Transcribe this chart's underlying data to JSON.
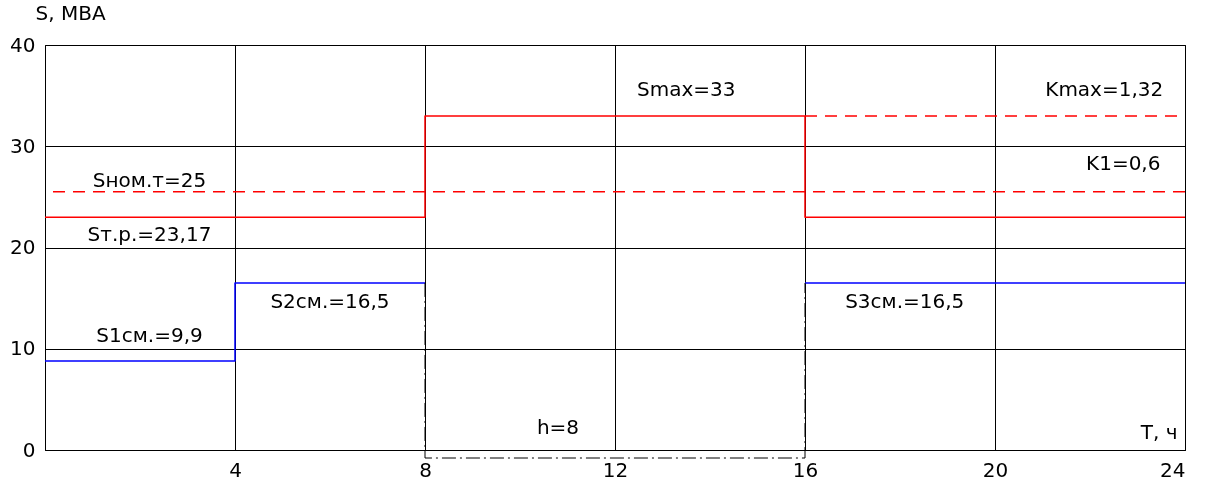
{
  "chart_data": {
    "type": "step",
    "xlabel": "T, ч",
    "ylabel": "S, МВА",
    "xlim": [
      0,
      24
    ],
    "xticks": [
      4,
      8,
      12,
      16,
      20,
      24
    ],
    "ylim": [
      0,
      40
    ],
    "yticks": [
      0,
      10,
      20,
      30,
      40
    ],
    "grid": true,
    "line_style": "solid",
    "series": [
      {
        "color": "#0000ff",
        "x": [
          0,
          4,
          8,
          16,
          24
        ],
        "values": [
          8.8,
          16.5,
          null,
          16.5,
          16.5
        ]
      },
      {
        "color": "#ff0000",
        "x": [
          0,
          8,
          16,
          24
        ],
        "values": [
          23,
          33,
          23,
          23
        ]
      },
      {
        "type": "line",
        "color": "#ff0000",
        "line_style": "dashed",
        "x": [
          16,
          24
        ],
        "values": [
          33,
          33
        ]
      }
    ],
    "ref_lines": [
      {
        "axis": "y",
        "value": 25.5,
        "color": "#ff0000",
        "line_style": "dashed"
      }
    ],
    "annotations": [
      "Smax=33",
      "Kmax=1,32",
      "Sном.т=25",
      "K1=0,6",
      "Sт.р.=23,17",
      "S1см.=9,9",
      "S2см.=16,5",
      "S3см.=16,5",
      "h=8"
    ]
  }
}
